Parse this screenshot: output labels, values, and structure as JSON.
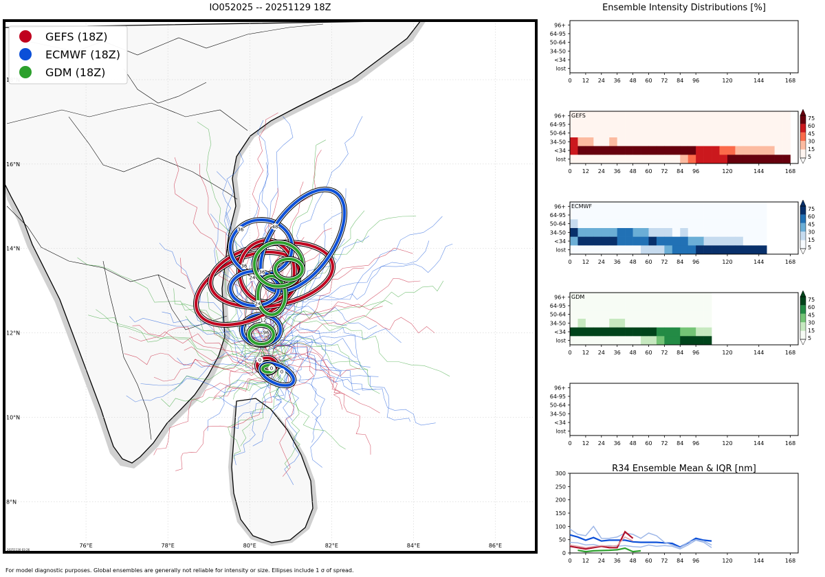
{
  "map": {
    "title": "IO052025 -- 20251129 18Z",
    "lat_labels": [
      "18°N",
      "16°N",
      "14°N",
      "12°N",
      "10°N",
      "8°N"
    ],
    "lat_values": [
      18,
      16,
      14,
      12,
      10,
      8
    ],
    "lon_labels": [
      "76°E",
      "78°E",
      "80°E",
      "82°E",
      "84°E",
      "86°E"
    ],
    "lon_values": [
      76,
      78,
      80,
      82,
      84,
      86
    ],
    "lat_range": [
      6.8,
      19.4
    ],
    "lon_range": [
      74.0,
      87.0
    ],
    "stamp": "20251130 03:26",
    "legend": [
      {
        "label": "GEFS (18Z)",
        "color": "#c0001e"
      },
      {
        "label": "ECMWF (18Z)",
        "color": "#0b4fd8"
      },
      {
        "label": "GDM (18Z)",
        "color": "#2ca02c"
      }
    ],
    "ellipse_labels": [
      "0",
      "12",
      "24",
      "36",
      "48",
      "72",
      "96"
    ]
  },
  "footer": "For model diagnostic purposes. Global ensembles are generally not reliable for intensity or size. Ellipses include 1 σ of spread.",
  "intensity": {
    "title": "Ensemble Intensity Distributions [%]",
    "rows": [
      "96+",
      "64-95",
      "50-64",
      "34-50",
      "<34",
      "lost"
    ],
    "x_ticks": [
      0,
      12,
      24,
      36,
      48,
      60,
      72,
      84,
      96,
      120,
      144,
      168
    ],
    "x_range": [
      0,
      174
    ],
    "colorbar_ticks": [
      75,
      60,
      45,
      30,
      15,
      5
    ],
    "panels": [
      {
        "label": "",
        "cmap": "none"
      },
      {
        "label": "GEFS",
        "cmap": "#a50f15",
        "colors": [
          "#fff5f0",
          "#fcbba1",
          "#fb6a4a",
          "#cb181d",
          "#67000d"
        ]
      },
      {
        "label": "ECMWF",
        "cmap": "#08306b",
        "colors": [
          "#f7fbff",
          "#c6dbef",
          "#6baed6",
          "#2171b5",
          "#08306b"
        ]
      },
      {
        "label": "GDM",
        "cmap": "#00441b",
        "colors": [
          "#f7fcf5",
          "#c7e9c0",
          "#74c476",
          "#238b45",
          "#00441b"
        ]
      },
      {
        "label": "",
        "cmap": "none"
      }
    ]
  },
  "chart_data": [
    {
      "type": "heatmap",
      "title": "GEFS",
      "rows": [
        "96+",
        "64-95",
        "50-64",
        "34-50",
        "<34",
        "lost"
      ],
      "x_start_hours": [
        0,
        6,
        12,
        18,
        24,
        30,
        36,
        42,
        48,
        54,
        60,
        66,
        72,
        78,
        84,
        90,
        96,
        102,
        108,
        114,
        120,
        126,
        132,
        138,
        144,
        150,
        156,
        162
      ],
      "values_pct": {
        "96+": [
          0,
          0,
          0,
          0,
          0,
          0,
          0,
          0,
          0,
          0,
          0,
          0,
          0,
          0,
          0,
          0,
          0,
          0,
          0,
          0,
          0,
          0,
          0,
          0,
          0,
          0,
          0,
          0
        ],
        "64-95": [
          1,
          1,
          1,
          1,
          1,
          1,
          1,
          1,
          1,
          1,
          1,
          1,
          1,
          1,
          1,
          1,
          1,
          1,
          1,
          1,
          1,
          1,
          1,
          1,
          1,
          1,
          1,
          1
        ],
        "50-64": [
          1,
          1,
          1,
          1,
          1,
          1,
          1,
          1,
          1,
          1,
          1,
          1,
          1,
          1,
          1,
          1,
          1,
          1,
          1,
          1,
          1,
          1,
          1,
          1,
          1,
          1,
          1,
          1
        ],
        "34-50": [
          60,
          10,
          10,
          1,
          1,
          10,
          1,
          1,
          1,
          1,
          1,
          1,
          1,
          1,
          1,
          1,
          1,
          1,
          1,
          1,
          1,
          1,
          1,
          1,
          1,
          1,
          1,
          1
        ],
        "<34": [
          40,
          90,
          90,
          90,
          90,
          90,
          90,
          90,
          90,
          90,
          90,
          90,
          90,
          90,
          90,
          85,
          60,
          60,
          45,
          35,
          30,
          15,
          15,
          15,
          15,
          15,
          1,
          1
        ],
        "lost": [
          0,
          0,
          0,
          0,
          0,
          0,
          0,
          0,
          0,
          0,
          0,
          0,
          0,
          0,
          15,
          30,
          40,
          45,
          50,
          60,
          80,
          90,
          90,
          90,
          90,
          90,
          90,
          90
        ]
      }
    },
    {
      "type": "heatmap",
      "title": "ECMWF",
      "rows": [
        "96+",
        "64-95",
        "50-64",
        "34-50",
        "<34",
        "lost"
      ],
      "x_start_hours": [
        0,
        6,
        12,
        18,
        24,
        30,
        36,
        42,
        48,
        54,
        60,
        66,
        72,
        78,
        84,
        90,
        96,
        102,
        108,
        114,
        120,
        126,
        132,
        138,
        144
      ],
      "values_pct": {
        "96+": [
          1,
          1,
          1,
          1,
          1,
          1,
          1,
          1,
          1,
          1,
          1,
          1,
          1,
          1,
          1,
          1,
          1,
          1,
          1,
          1,
          1,
          1,
          1,
          1,
          1
        ],
        "64-95": [
          1,
          1,
          1,
          1,
          1,
          1,
          1,
          1,
          1,
          1,
          1,
          1,
          1,
          1,
          1,
          1,
          1,
          1,
          1,
          1,
          1,
          1,
          1,
          1,
          1
        ],
        "50-64": [
          10,
          1,
          1,
          1,
          1,
          1,
          1,
          1,
          1,
          1,
          1,
          1,
          1,
          1,
          1,
          1,
          1,
          1,
          1,
          1,
          1,
          1,
          1,
          1,
          1
        ],
        "34-50": [
          70,
          20,
          20,
          20,
          20,
          20,
          40,
          40,
          20,
          20,
          10,
          10,
          10,
          1,
          10,
          1,
          1,
          1,
          1,
          1,
          1,
          1,
          1,
          1,
          1
        ],
        "<34": [
          20,
          80,
          80,
          80,
          80,
          80,
          60,
          60,
          60,
          60,
          80,
          60,
          60,
          40,
          40,
          20,
          20,
          10,
          10,
          10,
          10,
          10,
          1,
          1,
          1
        ],
        "lost": [
          0,
          0,
          0,
          0,
          0,
          0,
          0,
          0,
          0,
          5,
          5,
          10,
          20,
          40,
          40,
          60,
          70,
          80,
          80,
          80,
          80,
          80,
          90,
          90,
          90
        ]
      }
    },
    {
      "type": "heatmap",
      "title": "GDM",
      "rows": [
        "96+",
        "64-95",
        "50-64",
        "34-50",
        "<34",
        "lost"
      ],
      "x_start_hours": [
        0,
        6,
        12,
        18,
        24,
        30,
        36,
        42,
        48,
        54,
        60,
        66,
        72,
        78,
        84,
        90,
        96,
        102
      ],
      "values_pct": {
        "96+": [
          1,
          1,
          1,
          1,
          1,
          1,
          1,
          1,
          1,
          1,
          1,
          1,
          1,
          1,
          1,
          1,
          1,
          1
        ],
        "64-95": [
          1,
          1,
          1,
          1,
          1,
          1,
          1,
          1,
          1,
          1,
          1,
          1,
          1,
          1,
          1,
          1,
          1,
          1
        ],
        "50-64": [
          1,
          1,
          1,
          1,
          1,
          1,
          1,
          1,
          1,
          1,
          1,
          1,
          1,
          1,
          1,
          1,
          1,
          1
        ],
        "34-50": [
          1,
          10,
          1,
          1,
          1,
          10,
          10,
          1,
          1,
          1,
          1,
          1,
          1,
          1,
          1,
          1,
          1,
          1
        ],
        "<34": [
          95,
          90,
          95,
          95,
          95,
          90,
          90,
          95,
          95,
          90,
          90,
          60,
          40,
          40,
          20,
          20,
          5,
          5
        ],
        "lost": [
          0,
          0,
          0,
          0,
          0,
          0,
          0,
          0,
          0,
          5,
          5,
          30,
          50,
          50,
          70,
          80,
          90,
          90
        ]
      }
    },
    {
      "type": "line",
      "title": "R34 Ensemble Mean & IQR [nm]",
      "x_ticks": [
        0,
        12,
        24,
        36,
        48,
        60,
        72,
        84,
        96,
        120,
        144,
        168
      ],
      "ylim": [
        0,
        300
      ],
      "y_ticks": [
        0,
        50,
        100,
        150,
        200,
        250,
        300
      ],
      "series": [
        {
          "color": "#0b4fd8",
          "x": [
            0,
            6,
            12,
            18,
            24,
            30,
            36,
            42,
            48,
            54,
            60,
            66,
            72,
            78,
            84,
            90,
            96,
            102,
            108
          ],
          "values": [
            68,
            60,
            48,
            58,
            45,
            48,
            48,
            48,
            42,
            40,
            40,
            40,
            38,
            36,
            22,
            38,
            55,
            48,
            45
          ]
        },
        {
          "color": "#9fb8e8",
          "x": [
            0,
            6,
            12,
            18,
            24,
            30,
            36,
            42,
            48,
            54,
            60,
            66,
            72,
            78,
            84,
            90,
            96,
            102,
            108
          ],
          "values": [
            90,
            70,
            65,
            100,
            55,
            55,
            60,
            75,
            70,
            55,
            75,
            65,
            40,
            30,
            20,
            40,
            50,
            45,
            30
          ]
        },
        {
          "color": "#9fb8e8",
          "x": [
            0,
            6,
            12,
            18,
            24,
            30,
            36,
            42,
            48,
            54,
            60,
            66,
            72,
            78,
            84,
            90,
            96,
            102,
            108
          ],
          "values": [
            40,
            38,
            30,
            32,
            25,
            28,
            25,
            28,
            24,
            22,
            30,
            25,
            28,
            25,
            15,
            30,
            48,
            40,
            20
          ]
        },
        {
          "color": "#b0102a",
          "x": [
            0,
            6,
            12,
            24,
            30,
            36,
            42,
            48
          ],
          "values": [
            25,
            20,
            15,
            25,
            20,
            20,
            80,
            55
          ]
        },
        {
          "color": "#e0a0a8",
          "x": [
            0,
            6,
            12,
            24,
            30,
            36,
            42,
            48
          ],
          "values": [
            30,
            25,
            20,
            28,
            25,
            28,
            60,
            45
          ]
        },
        {
          "color": "#2ca02c",
          "x": [
            6,
            12,
            18,
            30,
            36,
            42,
            48,
            54
          ],
          "values": [
            10,
            5,
            8,
            10,
            12,
            18,
            5,
            8
          ]
        }
      ]
    }
  ]
}
